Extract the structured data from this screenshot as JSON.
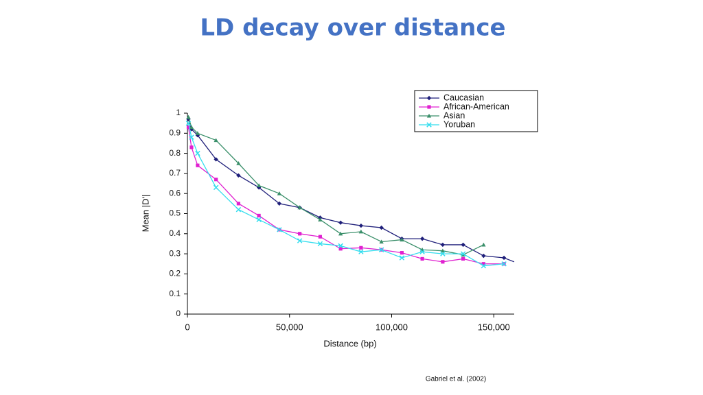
{
  "chart_data": {
    "type": "line",
    "title": "LD decay over distance",
    "xlabel": "Distance (bp)",
    "ylabel": "Mean |D'|",
    "source": "Gabriel et al. (2002)",
    "xlim": [
      0,
      160000
    ],
    "xticks": [
      0,
      {
        "value": 50000,
        "label": "50,000"
      },
      {
        "value": 100000,
        "label": "100,000"
      },
      {
        "value": 150000,
        "label": "150,000"
      }
    ],
    "ylim": [
      0,
      1
    ],
    "yticks": [
      0,
      0.1,
      0.2,
      0.3,
      0.4,
      0.5,
      0.6,
      0.7,
      0.8,
      0.9,
      1
    ],
    "grid": false,
    "legend": "upper right",
    "series": [
      {
        "name": "Caucasian",
        "color": "#1f1f7a",
        "marker": "diamond",
        "x": [
          500,
          2000,
          5000,
          14000,
          25000,
          35000,
          45000,
          55000,
          65000,
          75000,
          85000,
          95000,
          105000,
          115000,
          125000,
          135000,
          145000,
          155000,
          160000
        ],
        "values": [
          0.97,
          0.92,
          0.89,
          0.77,
          0.69,
          0.63,
          0.55,
          0.53,
          0.48,
          0.455,
          0.44,
          0.43,
          0.375,
          0.375,
          0.345,
          0.345,
          0.29,
          0.28,
          0.26
        ]
      },
      {
        "name": "African-American",
        "color": "#e020d0",
        "marker": "square",
        "x": [
          500,
          2000,
          5000,
          14000,
          25000,
          35000,
          45000,
          55000,
          65000,
          75000,
          85000,
          95000,
          105000,
          115000,
          125000,
          135000,
          145000,
          155000
        ],
        "values": [
          0.93,
          0.83,
          0.74,
          0.67,
          0.55,
          0.49,
          0.42,
          0.4,
          0.385,
          0.325,
          0.33,
          0.32,
          0.305,
          0.275,
          0.26,
          0.275,
          0.25,
          0.25
        ]
      },
      {
        "name": "Asian",
        "color": "#3a8f6a",
        "marker": "triangle",
        "x": [
          500,
          2000,
          5000,
          14000,
          25000,
          35000,
          45000,
          55000,
          65000,
          75000,
          85000,
          95000,
          105000,
          115000,
          125000,
          135000,
          145000
        ],
        "values": [
          0.98,
          0.93,
          0.9,
          0.865,
          0.75,
          0.64,
          0.6,
          0.53,
          0.47,
          0.4,
          0.41,
          0.36,
          0.37,
          0.32,
          0.315,
          0.295,
          0.345
        ]
      },
      {
        "name": "Yoruban",
        "color": "#33ddee",
        "marker": "cross",
        "x": [
          500,
          2000,
          5000,
          14000,
          25000,
          35000,
          45000,
          55000,
          65000,
          75000,
          85000,
          95000,
          105000,
          115000,
          125000,
          135000,
          145000,
          155000
        ],
        "values": [
          0.95,
          0.88,
          0.8,
          0.63,
          0.52,
          0.47,
          0.42,
          0.365,
          0.35,
          0.34,
          0.31,
          0.32,
          0.28,
          0.31,
          0.3,
          0.3,
          0.24,
          0.25
        ]
      }
    ]
  }
}
